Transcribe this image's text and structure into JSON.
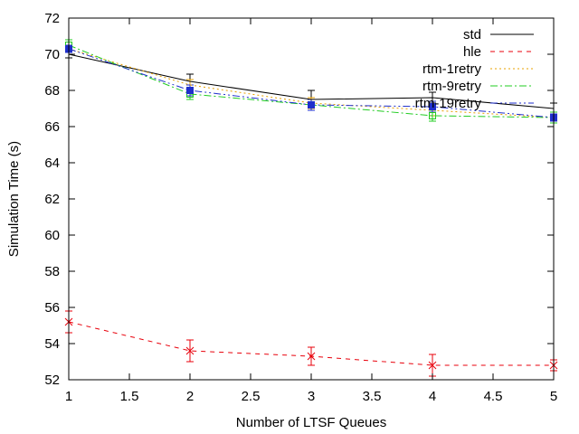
{
  "chart_data": {
    "type": "line",
    "title": "",
    "xlabel": "Number of LTSF Queues",
    "ylabel": "Simulation Time (s)",
    "xlim": [
      1,
      5
    ],
    "ylim": [
      52,
      72
    ],
    "x_ticks": [
      1,
      1.5,
      2,
      2.5,
      3,
      3.5,
      4,
      4.5,
      5
    ],
    "x_tick_labels": [
      "1",
      "1.5",
      "2",
      "2.5",
      "3",
      "3.5",
      "4",
      "4.5",
      "5"
    ],
    "y_ticks": [
      52,
      54,
      56,
      58,
      60,
      62,
      64,
      66,
      68,
      70,
      72
    ],
    "y_tick_labels": [
      "52",
      "54",
      "56",
      "58",
      "60",
      "62",
      "64",
      "66",
      "68",
      "70",
      "72"
    ],
    "grid": false,
    "legend_position": "top-right",
    "x": [
      1,
      2,
      3,
      4,
      5
    ],
    "series": [
      {
        "name": "std",
        "values": [
          70.0,
          68.5,
          67.5,
          67.6,
          67.0
        ],
        "errors": [
          0.2,
          0.4,
          0.5,
          0.3,
          0.3
        ],
        "color": "#000000",
        "dash": "",
        "marker": "none"
      },
      {
        "name": "hle",
        "values": [
          55.2,
          53.6,
          53.3,
          52.8,
          52.8
        ],
        "errors": [
          0.6,
          0.6,
          0.5,
          0.6,
          0.3
        ],
        "color": "#e8000b",
        "dash": "5,5",
        "marker": "x"
      },
      {
        "name": "rtm-1retry",
        "values": [
          70.3,
          68.3,
          67.3,
          66.9,
          66.5
        ],
        "errors": [
          0.2,
          0.3,
          0.3,
          0.3,
          0.3
        ],
        "color": "#e8a000",
        "dash": "2,3",
        "marker": "none"
      },
      {
        "name": "rtm-9retry",
        "values": [
          70.5,
          67.8,
          67.2,
          66.6,
          66.5
        ],
        "errors": [
          0.3,
          0.3,
          0.3,
          0.3,
          0.3
        ],
        "color": "#22cc22",
        "dash": "8,3,2,3",
        "marker": "box"
      },
      {
        "name": "rtm-19retry",
        "values": [
          70.3,
          68.0,
          67.2,
          67.1,
          66.5
        ],
        "errors": [
          0.2,
          0.3,
          0.3,
          0.3,
          0.2
        ],
        "color": "#1f2fcc",
        "dash": "8,3,2,3,2,3",
        "marker": "filled-square"
      }
    ]
  }
}
